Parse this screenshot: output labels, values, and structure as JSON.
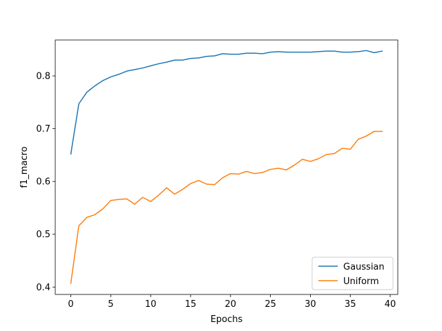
{
  "chart_data": {
    "type": "line",
    "title": "",
    "xlabel": "Epochs",
    "ylabel": "f1_macro",
    "xlim": [
      -1.95,
      40.95
    ],
    "ylim": [
      0.386,
      0.868
    ],
    "xticks": [
      0,
      5,
      10,
      15,
      20,
      25,
      30,
      35,
      40
    ],
    "yticks": [
      0.4,
      0.5,
      0.6,
      0.7,
      0.8
    ],
    "xtick_labels": [
      "0",
      "5",
      "10",
      "15",
      "20",
      "25",
      "30",
      "35",
      "40"
    ],
    "ytick_labels": [
      "0.4",
      "0.5",
      "0.6",
      "0.7",
      "0.8"
    ],
    "grid": false,
    "legend_position": "lower-right",
    "x": [
      0,
      1,
      2,
      3,
      4,
      5,
      6,
      7,
      8,
      9,
      10,
      11,
      12,
      13,
      14,
      15,
      16,
      17,
      18,
      19,
      20,
      21,
      22,
      23,
      24,
      25,
      26,
      27,
      28,
      29,
      30,
      31,
      32,
      33,
      34,
      35,
      36,
      37,
      38,
      39
    ],
    "series": [
      {
        "name": "Gaussian",
        "color": "#1f77b4",
        "values": [
          0.652,
          0.747,
          0.769,
          0.781,
          0.791,
          0.798,
          0.803,
          0.809,
          0.812,
          0.815,
          0.819,
          0.823,
          0.826,
          0.83,
          0.83,
          0.833,
          0.834,
          0.837,
          0.838,
          0.842,
          0.841,
          0.841,
          0.843,
          0.843,
          0.842,
          0.845,
          0.846,
          0.845,
          0.845,
          0.845,
          0.845,
          0.846,
          0.847,
          0.847,
          0.845,
          0.845,
          0.846,
          0.848,
          0.844,
          0.847
        ]
      },
      {
        "name": "Uniform",
        "color": "#ff7f0e",
        "values": [
          0.407,
          0.516,
          0.532,
          0.537,
          0.548,
          0.564,
          0.566,
          0.567,
          0.557,
          0.57,
          0.562,
          0.574,
          0.588,
          0.576,
          0.585,
          0.596,
          0.602,
          0.595,
          0.594,
          0.607,
          0.615,
          0.614,
          0.619,
          0.615,
          0.617,
          0.623,
          0.625,
          0.622,
          0.631,
          0.642,
          0.638,
          0.643,
          0.651,
          0.653,
          0.663,
          0.661,
          0.68,
          0.686,
          0.695,
          0.695
        ]
      }
    ]
  }
}
